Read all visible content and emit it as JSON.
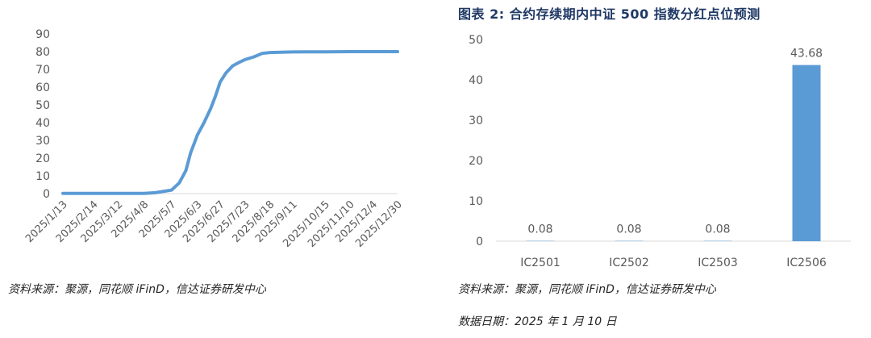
{
  "chart_data": [
    {
      "type": "line",
      "title": "",
      "ylim": [
        0,
        90
      ],
      "yticks": [
        0,
        10,
        20,
        30,
        40,
        50,
        60,
        70,
        80,
        90
      ],
      "xtick_labels": [
        "2025/1/13",
        "2025/2/14",
        "2025/3/12",
        "2025/4/8",
        "2025/5/7",
        "2025/6/3",
        "2025/6/27",
        "2025/7/23",
        "2025/8/18",
        "2025/9/11",
        "2025/10/15",
        "2025/11/10",
        "2025/12/4",
        "2025/12/30"
      ],
      "color": "#5b9bd5",
      "x": [
        "2025/1/13",
        "2025/2/14",
        "2025/3/12",
        "2025/4/8",
        "2025/4/20",
        "2025/5/7",
        "2025/5/15",
        "2025/5/22",
        "2025/5/27",
        "2025/6/3",
        "2025/6/10",
        "2025/6/17",
        "2025/6/22",
        "2025/6/27",
        "2025/7/3",
        "2025/7/10",
        "2025/7/17",
        "2025/7/23",
        "2025/8/1",
        "2025/8/10",
        "2025/8/18",
        "2025/9/11",
        "2025/10/15",
        "2025/11/10",
        "2025/12/4",
        "2025/12/30"
      ],
      "y": [
        0.1,
        0.1,
        0.1,
        0.1,
        0.5,
        2,
        6,
        13,
        23,
        33,
        40,
        48,
        55,
        63,
        68,
        72,
        74,
        75.5,
        77,
        79,
        79.5,
        79.8,
        79.9,
        80,
        80,
        80
      ],
      "source": "资料来源：聚源，同花顺 iFinD，信达证券研发中心"
    },
    {
      "type": "bar",
      "title": "图表 2:  合约存续期内中证 500 指数分红点位预测",
      "categories": [
        "IC2501",
        "IC2502",
        "IC2503",
        "IC2506"
      ],
      "values": [
        0.08,
        0.08,
        0.08,
        43.68
      ],
      "value_labels": [
        "0.08",
        "0.08",
        "0.08",
        "43.68"
      ],
      "ylim": [
        0,
        50
      ],
      "yticks": [
        0,
        10,
        20,
        30,
        40,
        50
      ],
      "color": "#5b9bd5",
      "source": "资料来源：聚源，同花顺 iFinD，信达证券研发中心",
      "date_note": "数据日期：2025 年 1 月 10 日"
    }
  ]
}
